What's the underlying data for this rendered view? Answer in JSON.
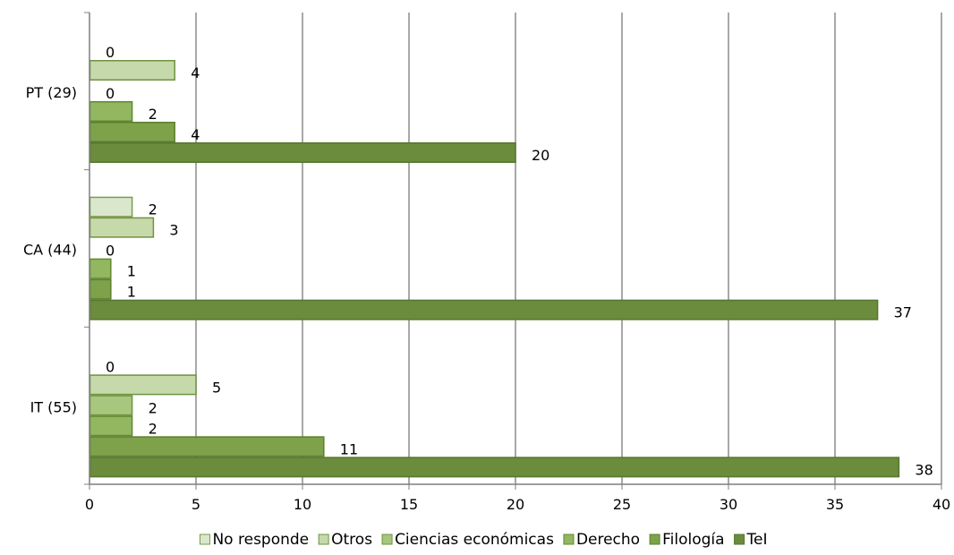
{
  "chart_data": {
    "type": "bar",
    "orientation": "horizontal",
    "categories": [
      "PT (29)",
      "CA (44)",
      "IT (55)"
    ],
    "series": [
      {
        "name": "No responde",
        "values": [
          0,
          2,
          0
        ],
        "color": "#dbe7cc",
        "stroke": "#7a9b4a"
      },
      {
        "name": "Otros",
        "values": [
          4,
          3,
          5
        ],
        "color": "#c6d9ab",
        "stroke": "#6f9340"
      },
      {
        "name": "Ciencias económicas",
        "values": [
          0,
          0,
          2
        ],
        "color": "#a8c67e",
        "stroke": "#6f9340"
      },
      {
        "name": "Derecho",
        "values": [
          2,
          1,
          2
        ],
        "color": "#92b760",
        "stroke": "#5f8a30"
      },
      {
        "name": "Filología",
        "values": [
          4,
          1,
          11
        ],
        "color": "#7ea24a",
        "stroke": "#5a7f30"
      },
      {
        "name": "TeI",
        "values": [
          20,
          37,
          38
        ],
        "color": "#6b8c3c",
        "stroke": "#567630"
      }
    ],
    "xlim": [
      0,
      40
    ],
    "xticks": [
      0,
      5,
      10,
      15,
      20,
      25,
      30,
      35,
      40
    ],
    "grid": true,
    "legend_position": "bottom"
  }
}
